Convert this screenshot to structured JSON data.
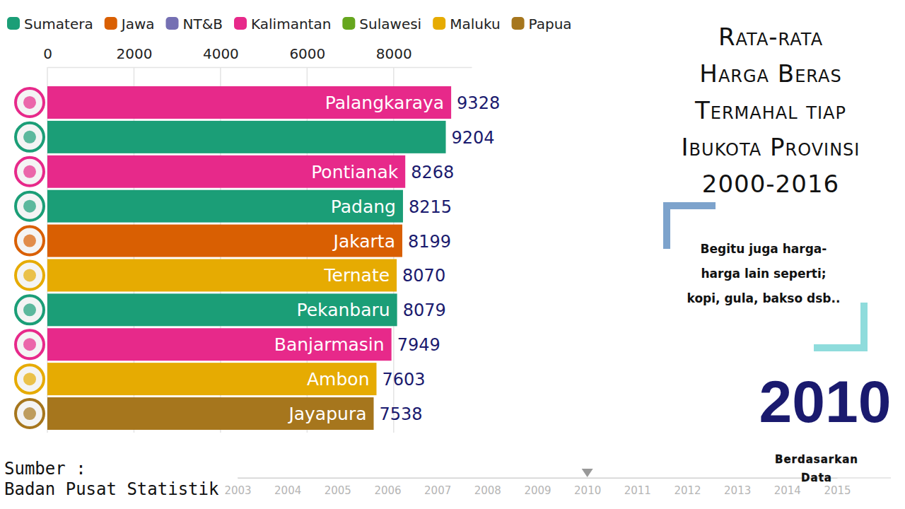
{
  "chart_data": {
    "type": "bar",
    "orientation": "horizontal",
    "title": [
      "Rata-rata",
      "Harga Beras",
      "Termahal tiap",
      "Ibukota Provinsi",
      "2000-2016"
    ],
    "annotation": [
      "Begitu juga harga-",
      "harga lain seperti;",
      "kopi, gula, bakso dsb.."
    ],
    "source": [
      "Sumber :",
      "Badan Pusat Statistik"
    ],
    "watermark": [
      "Berdasarkan",
      "Data"
    ],
    "regions": [
      {
        "name": "Sumatera",
        "color": "#1b9e77"
      },
      {
        "name": "Jawa",
        "color": "#d95f02"
      },
      {
        "name": "NT&B",
        "color": "#7570b3"
      },
      {
        "name": "Kalimantan",
        "color": "#e7298a"
      },
      {
        "name": "Sulawesi",
        "color": "#66a61e"
      },
      {
        "name": "Maluku",
        "color": "#e6ab02"
      },
      {
        "name": "Papua",
        "color": "#a6761d"
      }
    ],
    "categories": [
      "Palangkaraya",
      null,
      "Pontianak",
      "Padang",
      "Jakarta",
      "Ternate",
      "Pekanbaru",
      "Banjarmasin",
      "Ambon",
      "Jayapura"
    ],
    "values": [
      9328,
      9204,
      8268,
      8215,
      8199,
      8070,
      8079,
      7949,
      7603,
      7538
    ],
    "colors": [
      "#e7298a",
      "#1b9e77",
      "#e7298a",
      "#1b9e77",
      "#d95f02",
      "#e6ab02",
      "#1b9e77",
      "#e7298a",
      "#e6ab02",
      "#a6761d"
    ],
    "data_labels": true,
    "xlim": [
      0,
      9800
    ],
    "xticks": [
      0,
      2000,
      4000,
      6000,
      8000
    ],
    "grid": true,
    "timeline": {
      "ticks": [
        2003,
        2004,
        2005,
        2006,
        2007,
        2008,
        2009,
        2010,
        2011,
        2012,
        2013,
        2014,
        2015
      ],
      "current": 2010
    }
  }
}
